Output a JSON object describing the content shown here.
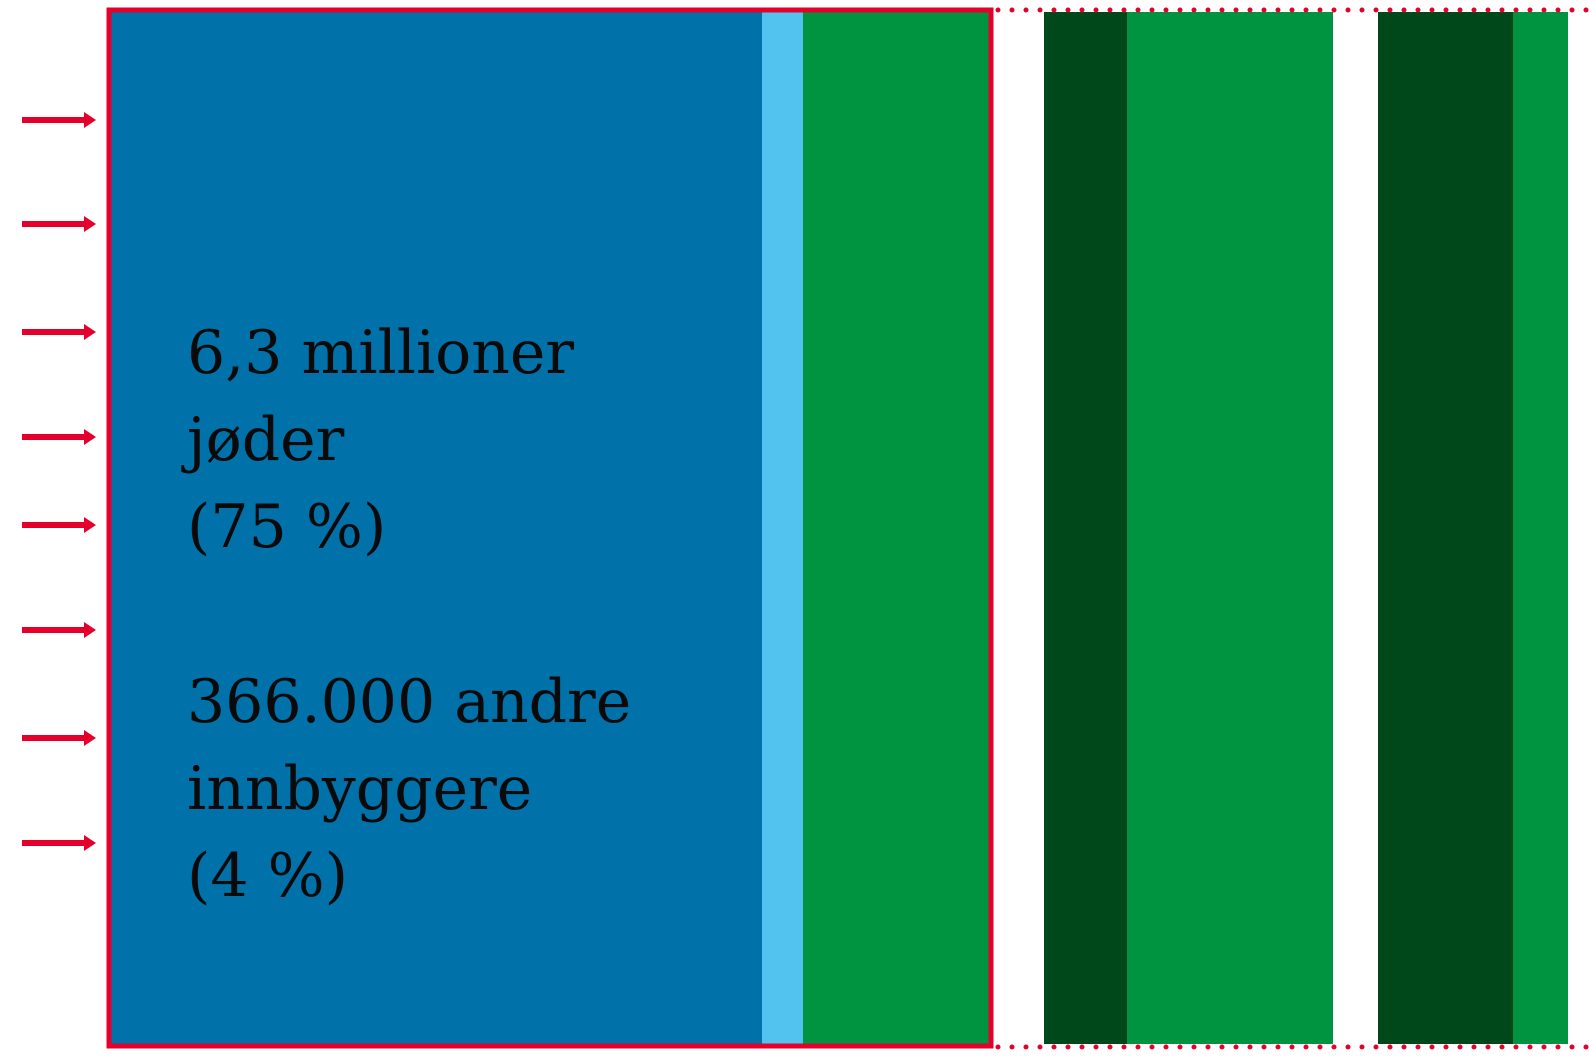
{
  "text_blocks": [
    {
      "lines": [
        "6,3 millioner",
        "jøder",
        "(75 %)"
      ]
    },
    {
      "lines": [
        "366.000 andre",
        "innbyggere",
        "(4 %)"
      ]
    }
  ]
}
